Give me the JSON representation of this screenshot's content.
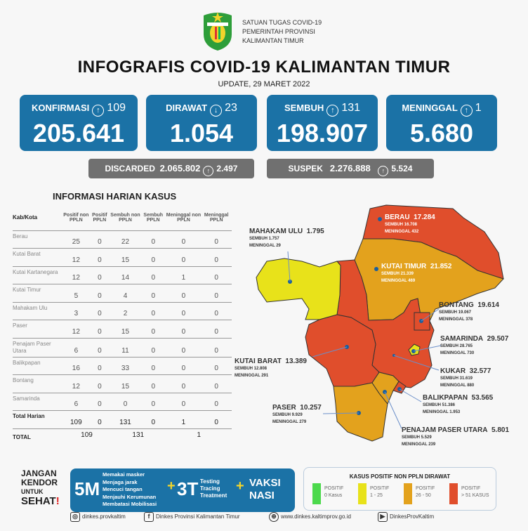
{
  "header": {
    "org_lines": [
      "SATUAN TUGAS COVID-19",
      "PEMERINTAH PROVINSI",
      "KALIMANTAN TIMUR"
    ],
    "title": "INFOGRAFIS COVID-19 KALIMANTAN TIMUR",
    "update": "UPDATE, 29 MARET 2022"
  },
  "cards": [
    {
      "label": "KONFIRMASI",
      "direction": "up",
      "delta": "109",
      "value": "205.641"
    },
    {
      "label": "DIRAWAT",
      "direction": "down",
      "delta": "23",
      "value": "1.054"
    },
    {
      "label": "SEMBUH",
      "direction": "up",
      "delta": "131",
      "value": "198.907"
    },
    {
      "label": "MENINGGAL",
      "direction": "up",
      "delta": "1",
      "value": "5.680"
    }
  ],
  "discarded": {
    "label": "DISCARDED",
    "value": "2.065.802",
    "delta": "2.497"
  },
  "suspek": {
    "label": "SUSPEK",
    "value": "2.276.888",
    "delta": "5.524"
  },
  "table": {
    "title": "INFORMASI HARIAN KASUS",
    "headers": [
      "Kab/Kota",
      "Positif non PPLN",
      "Positif PPLN",
      "Sembuh non PPLN",
      "Sembuh PPLN",
      "Meninggal non PPLN",
      "Meninggal PPLN"
    ],
    "rows": [
      [
        "Berau",
        "25",
        "0",
        "22",
        "0",
        "0",
        "0"
      ],
      [
        "Kutai Barat",
        "12",
        "0",
        "15",
        "0",
        "0",
        "0"
      ],
      [
        "Kutai Kartanegara",
        "12",
        "0",
        "14",
        "0",
        "1",
        "0"
      ],
      [
        "Kutai Timur",
        "5",
        "0",
        "4",
        "0",
        "0",
        "0"
      ],
      [
        "Mahakam Ulu",
        "3",
        "0",
        "2",
        "0",
        "0",
        "0"
      ],
      [
        "Paser",
        "12",
        "0",
        "15",
        "0",
        "0",
        "0"
      ],
      [
        "Penajam Paser Utara",
        "6",
        "0",
        "11",
        "0",
        "0",
        "0"
      ],
      [
        "Balikpapan",
        "16",
        "0",
        "33",
        "0",
        "0",
        "0"
      ],
      [
        "Bontang",
        "12",
        "0",
        "15",
        "0",
        "0",
        "0"
      ],
      [
        "Samarinda",
        "6",
        "0",
        "0",
        "0",
        "0",
        "0"
      ]
    ],
    "total_harian": [
      "Total Harian",
      "109",
      "0",
      "131",
      "0",
      "1",
      "0"
    ],
    "total": {
      "label": "TOTAL",
      "positif": "109",
      "sembuh": "131",
      "meninggal": "1"
    }
  },
  "map": [
    {
      "name": "BERAU",
      "total": "17.284",
      "sembuh": "SEMBUH 16.708",
      "meninggal": "MENINGGAL 432"
    },
    {
      "name": "MAHAKAM ULU",
      "total": "1.795",
      "sembuh": "SEMBUH 1.757",
      "meninggal": "MENINGGAL 29"
    },
    {
      "name": "KUTAI TIMUR",
      "total": "21.852",
      "sembuh": "SEMBUH 21.339",
      "meninggal": "MENINGGAL 469"
    },
    {
      "name": "BONTANG",
      "total": "19.614",
      "sembuh": "SEMBUH 19.067",
      "meninggal": "MENINGGAL 378"
    },
    {
      "name": "SAMARINDA",
      "total": "29.507",
      "sembuh": "SEMBUH 28.765",
      "meninggal": "MENINGGAL 730"
    },
    {
      "name": "KUTAI BARAT",
      "total": "13.389",
      "sembuh": "SEMBUH 12.808",
      "meninggal": "MENINGGAL 291"
    },
    {
      "name": "KUKAR",
      "total": "32.577",
      "sembuh": "SEMBUH 31.619",
      "meninggal": "MENINGGAL 880"
    },
    {
      "name": "BALIKPAPAN",
      "total": "53.565",
      "sembuh": "SEMBUH 51.386",
      "meninggal": "MENINGGAL 1.953"
    },
    {
      "name": "PASER",
      "total": "10.257",
      "sembuh": "SEMBUH 9.929",
      "meninggal": "MENINGGAL 279"
    },
    {
      "name": "PENAJAM PASER UTARA",
      "total": "5.801",
      "sembuh": "SEMBUH 5.529",
      "meninggal": "MENINGGAL 239"
    }
  ],
  "campaign": {
    "slogan": [
      "JANGAN",
      "KENDOR",
      "UNTUK",
      "SEHAT"
    ],
    "m5": "5M",
    "m5_items": [
      "Memakai masker",
      "Menjaga jarak",
      "Mencuci tangan",
      "Menjauhi Kerumunan",
      "Membatasi Mobilisasi"
    ],
    "t3": "3T",
    "t3_items": [
      "Testing",
      "Tracing",
      "Treatment"
    ],
    "vaksi": [
      "VAKSI",
      "NASI"
    ]
  },
  "legend": {
    "title": "KASUS POSITIF NON PPLN DIRAWAT",
    "items": [
      {
        "l1": "POSITIF",
        "l2": "0 Kasus",
        "color": "#4cd94c"
      },
      {
        "l1": "POSITIF",
        "l2": "1 - 25",
        "color": "#e8e21a"
      },
      {
        "l1": "POSITIF",
        "l2": "26 - 50",
        "color": "#e3a21d"
      },
      {
        "l1": "POSITIF",
        "l2": "> 51 KASUS",
        "color": "#e04e2c"
      }
    ]
  },
  "footer": {
    "instagram": "dinkes.provkaltim",
    "facebook": "Dinkes Provinsi Kalimantan Timur",
    "web": "www.dinkes.kaltimprov.go.id",
    "youtube": "DinkesProvKaltim"
  },
  "colors": {
    "blue": "#1b72a6",
    "grey": "#707070",
    "red": "#e04e2c",
    "orange": "#e3a21d",
    "yellow": "#e8e21a"
  }
}
